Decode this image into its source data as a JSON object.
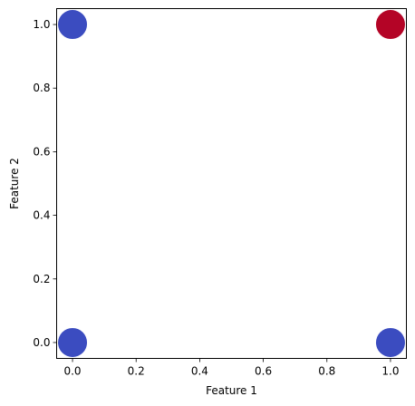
{
  "chart_data": {
    "type": "scatter",
    "title": "",
    "xlabel": "Feature 1",
    "ylabel": "Feature 2",
    "xlim": [
      -0.05,
      1.05
    ],
    "ylim": [
      -0.05,
      1.05
    ],
    "x_ticks": [
      "0.0",
      "0.2",
      "0.4",
      "0.6",
      "0.8",
      "1.0"
    ],
    "y_ticks": [
      "0.0",
      "0.2",
      "0.4",
      "0.6",
      "0.8",
      "1.0"
    ],
    "grid": false,
    "legend": false,
    "colors": {
      "class_0": "#3b4cc0",
      "class_1": "#b40426"
    },
    "points": [
      {
        "x": 0,
        "y": 0,
        "class": 0
      },
      {
        "x": 0,
        "y": 1,
        "class": 0
      },
      {
        "x": 1,
        "y": 0,
        "class": 0
      },
      {
        "x": 1,
        "y": 1,
        "class": 1
      }
    ]
  }
}
